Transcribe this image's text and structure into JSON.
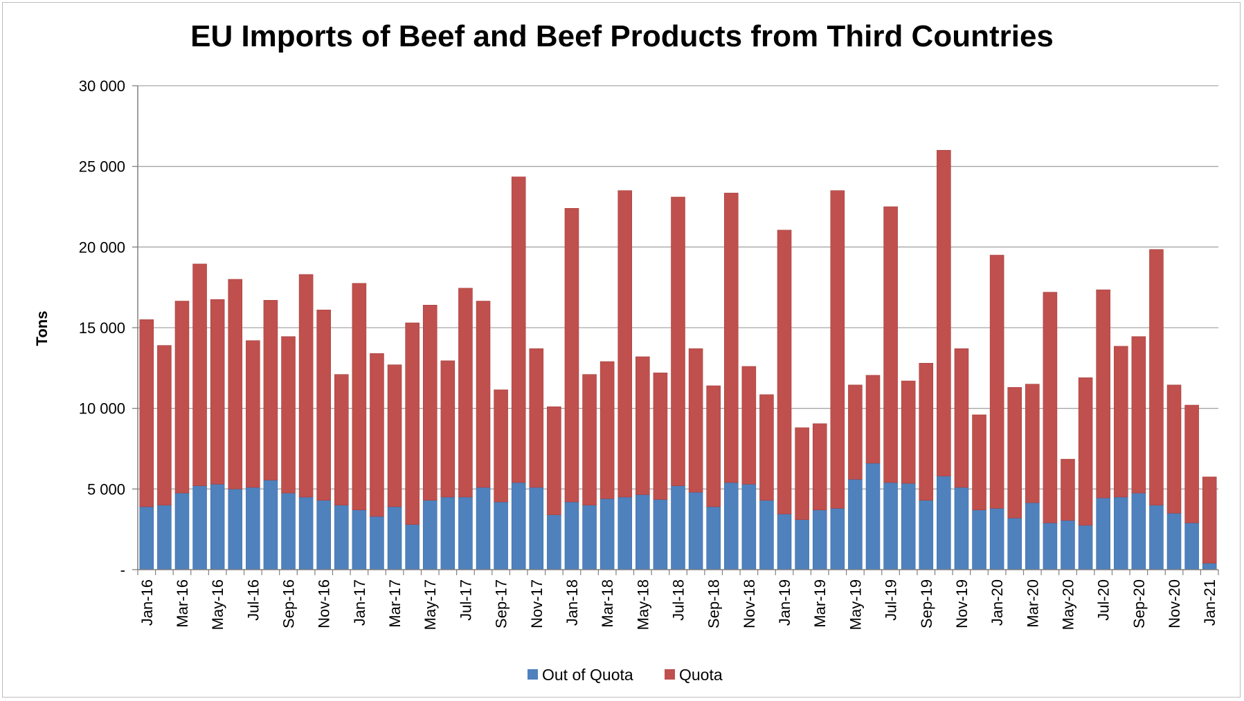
{
  "chart_data": {
    "type": "bar",
    "stacked": true,
    "title": "EU Imports of Beef and Beef Products from Third Countries",
    "xlabel": "",
    "ylabel": "Tons",
    "ylim": [
      0,
      30000
    ],
    "yticks": [
      {
        "value": 0,
        "label": "-"
      },
      {
        "value": 5000,
        "label": "5 000"
      },
      {
        "value": 10000,
        "label": "10 000"
      },
      {
        "value": 15000,
        "label": "15 000"
      },
      {
        "value": 20000,
        "label": "20 000"
      },
      {
        "value": 25000,
        "label": "25 000"
      },
      {
        "value": 30000,
        "label": "30 000"
      }
    ],
    "grid": true,
    "legend_position": "bottom",
    "colors": {
      "out_of_quota": "#4f81bd",
      "quota": "#c0504d"
    },
    "categories": [
      "Jan-16",
      "Feb-16",
      "Mar-16",
      "Apr-16",
      "May-16",
      "Jun-16",
      "Jul-16",
      "Aug-16",
      "Sep-16",
      "Oct-16",
      "Nov-16",
      "Dec-16",
      "Jan-17",
      "Feb-17",
      "Mar-17",
      "Apr-17",
      "May-17",
      "Jun-17",
      "Jul-17",
      "Aug-17",
      "Sep-17",
      "Oct-17",
      "Nov-17",
      "Dec-17",
      "Jan-18",
      "Feb-18",
      "Mar-18",
      "Apr-18",
      "May-18",
      "Jun-18",
      "Jul-18",
      "Aug-18",
      "Sep-18",
      "Oct-18",
      "Nov-18",
      "Dec-18",
      "Jan-19",
      "Feb-19",
      "Mar-19",
      "Apr-19",
      "May-19",
      "Jun-19",
      "Jul-19",
      "Aug-19",
      "Sep-19",
      "Oct-19",
      "Nov-19",
      "Dec-19",
      "Jan-20",
      "Feb-20",
      "Mar-20",
      "Apr-20",
      "May-20",
      "Jun-20",
      "Jul-20",
      "Aug-20",
      "Sep-20",
      "Oct-20",
      "Nov-20",
      "Dec-20",
      "Jan-21"
    ],
    "visible_tick_labels": [
      "Jan-16",
      "Mar-16",
      "May-16",
      "Jul-16",
      "Sep-16",
      "Nov-16",
      "Jan-17",
      "Mar-17",
      "May-17",
      "Jul-17",
      "Sep-17",
      "Nov-17",
      "Jan-18",
      "Mar-18",
      "May-18",
      "Jul-18",
      "Sep-18",
      "Nov-18",
      "Jan-19",
      "Mar-19",
      "May-19",
      "Jul-19",
      "Sep-19",
      "Nov-19",
      "Jan-20",
      "Mar-20",
      "May-20",
      "Jul-20",
      "Sep-20",
      "Nov-20",
      "Jan-21"
    ],
    "series": [
      {
        "name": "Out of Quota",
        "values": [
          3900,
          4000,
          4750,
          5200,
          5300,
          5000,
          5100,
          5550,
          4750,
          4500,
          4300,
          4000,
          3700,
          3300,
          3900,
          2800,
          4300,
          4500,
          4500,
          5100,
          4200,
          5400,
          5100,
          3400,
          4200,
          4000,
          4400,
          4500,
          4650,
          4350,
          5200,
          4800,
          3900,
          5400,
          5300,
          4300,
          3450,
          3100,
          3700,
          3800,
          5600,
          6600,
          5400,
          5350,
          4300,
          5800,
          5100,
          3700,
          3800,
          3200,
          4150,
          2900,
          3050,
          2750,
          4450,
          4500,
          4750,
          4000,
          3500,
          2900,
          400
        ]
      },
      {
        "name": "Quota",
        "values": [
          11600,
          9900,
          11900,
          13750,
          11450,
          13000,
          9100,
          11150,
          9700,
          13800,
          11800,
          8100,
          14050,
          10100,
          8800,
          12500,
          12100,
          8450,
          12950,
          11550,
          6950,
          18950,
          8600,
          6700,
          18200,
          8100,
          8500,
          19000,
          8550,
          7850,
          17900,
          8900,
          7500,
          17950,
          7300,
          6550,
          17600,
          5700,
          5350,
          19700,
          5850,
          5450,
          17100,
          6350,
          8500,
          20200,
          8600,
          5900,
          15700,
          8100,
          7350,
          14300,
          3800,
          9150,
          12900,
          9350,
          9700,
          15850,
          7950,
          7300,
          5350
        ]
      }
    ]
  }
}
